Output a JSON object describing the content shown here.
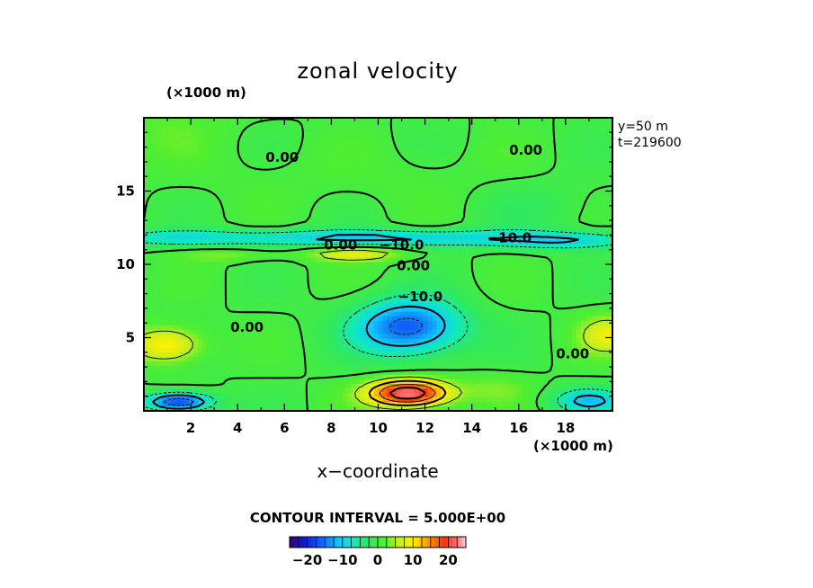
{
  "chart_data": {
    "type": "heatmap",
    "title": "zonal velocity",
    "xlabel": "x−coordinate",
    "x_unit": "(×1000 m)",
    "y_unit": "(×1000 m)",
    "xlim": [
      0,
      20
    ],
    "ylim": [
      0,
      20
    ],
    "x_ticks": [
      2,
      4,
      6,
      8,
      10,
      12,
      14,
      16,
      18
    ],
    "y_ticks": [
      5,
      10,
      15
    ],
    "annotations": [
      "y=50 m",
      "t=219600"
    ],
    "contour_interval_text": "CONTOUR INTERVAL = 5.000E+00",
    "colorbar": {
      "min": -25,
      "max": 25,
      "tick_values": [
        -20,
        -10,
        0,
        10,
        20
      ],
      "tick_labels": [
        "−20",
        "−10",
        "0",
        "10",
        "20"
      ]
    },
    "contour_labels": [
      {
        "text": "0.00",
        "x": 5.9,
        "y": 17.0
      },
      {
        "text": "0.00",
        "x": 16.3,
        "y": 17.5
      },
      {
        "text": "0.00",
        "x": 8.4,
        "y": 11.0
      },
      {
        "text": "−10.0",
        "x": 11.0,
        "y": 11.0
      },
      {
        "text": "−10.0",
        "x": 15.6,
        "y": 11.5
      },
      {
        "text": "0.00",
        "x": 11.5,
        "y": 9.6
      },
      {
        "text": "−10.0",
        "x": 11.8,
        "y": 7.5
      },
      {
        "text": "0.00",
        "x": 4.4,
        "y": 5.4
      },
      {
        "text": "0.00",
        "x": 18.3,
        "y": 3.6
      }
    ],
    "features": [
      {
        "x": 0,
        "y": 20,
        "sx": 4,
        "sy": 3,
        "value": 2
      },
      {
        "x": 10,
        "y": 16,
        "sx": 8,
        "sy": 2,
        "value": 1
      },
      {
        "x": 17,
        "y": 14,
        "sx": 3,
        "sy": 2,
        "value": -2
      },
      {
        "x": 10,
        "y": 11.8,
        "sx": 10,
        "sy": 0.55,
        "value": -11
      },
      {
        "x": 1,
        "y": 11.8,
        "sx": 2.5,
        "sy": 0.5,
        "value": -4
      },
      {
        "x": 18,
        "y": 11.5,
        "sx": 2.5,
        "sy": 0.5,
        "value": -6
      },
      {
        "x": 9,
        "y": 10.7,
        "sx": 2,
        "sy": 0.45,
        "value": 9
      },
      {
        "x": 3.5,
        "y": 10.6,
        "sx": 2,
        "sy": 0.4,
        "value": 4
      },
      {
        "x": 11.3,
        "y": 5.7,
        "sx": 2.3,
        "sy": 1.9,
        "value": -17
      },
      {
        "x": 1,
        "y": 4.5,
        "sx": 1.5,
        "sy": 1.2,
        "value": 11
      },
      {
        "x": 19.8,
        "y": 5.2,
        "sx": 1.2,
        "sy": 1.3,
        "value": 8
      },
      {
        "x": 1.5,
        "y": 0.6,
        "sx": 1.4,
        "sy": 0.6,
        "value": -20
      },
      {
        "x": 11.3,
        "y": 1.2,
        "sx": 1.7,
        "sy": 0.9,
        "value": 25
      },
      {
        "x": 19,
        "y": 0.7,
        "sx": 1.5,
        "sy": 0.8,
        "value": -11
      },
      {
        "x": 15,
        "y": 1.5,
        "sx": 1.5,
        "sy": 1,
        "value": 3
      }
    ]
  }
}
